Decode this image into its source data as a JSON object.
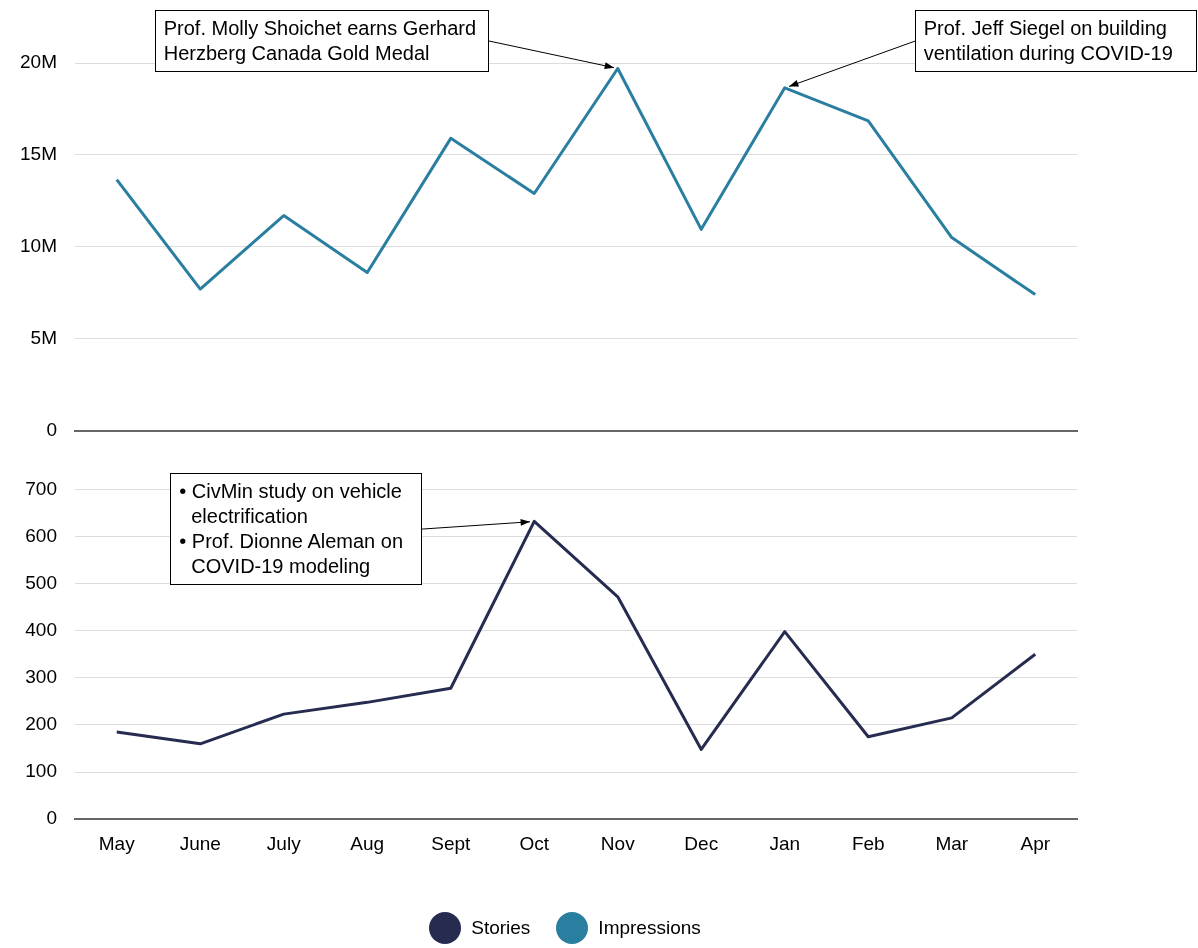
{
  "chart_data": [
    {
      "type": "line",
      "categories": [
        "May",
        "June",
        "July",
        "Aug",
        "Sept",
        "Oct",
        "Nov",
        "Dec",
        "Jan",
        "Feb",
        "Mar",
        "Apr"
      ],
      "series": [
        {
          "name": "Impressions",
          "color": "#2a7fa0",
          "values": [
            13650000,
            7700000,
            11700000,
            8600000,
            15900000,
            12900000,
            19700000,
            10950000,
            18650000,
            16850000,
            10500000,
            7400000
          ]
        }
      ],
      "ylim": [
        0,
        20000000
      ],
      "yticks": [
        0,
        {
          "value": 5000000,
          "label": "5M"
        },
        {
          "value": 10000000,
          "label": "10M"
        },
        {
          "value": 15000000,
          "label": "15M"
        },
        {
          "value": 20000000,
          "label": "20M"
        }
      ],
      "grid": "y",
      "tick_labels": "y",
      "legend": "bottom",
      "marker": "none",
      "annotations": [
        {
          "text": "Prof. Molly Shoichet earns Gerhard Herzberg Canada Gold Medal",
          "x": "Nov",
          "y": 19700000
        },
        {
          "text": "Prof. Jeff Siegel on building ventilation during COVID-19",
          "x": "Jan",
          "y": 18650000
        }
      ]
    },
    {
      "type": "line",
      "categories": [
        "May",
        "June",
        "July",
        "Aug",
        "Sept",
        "Oct",
        "Nov",
        "Dec",
        "Jan",
        "Feb",
        "Mar",
        "Apr"
      ],
      "series": [
        {
          "name": "Stories",
          "color": "#262b50",
          "values": [
            185,
            160,
            223,
            248,
            278,
            632,
            472,
            148,
            398,
            175,
            215,
            350
          ]
        }
      ],
      "ylim": [
        0,
        700
      ],
      "yticks": [
        0,
        100,
        200,
        300,
        400,
        500,
        600,
        700
      ],
      "grid": "y",
      "legend": "bottom",
      "marker": "none",
      "annotations": [
        {
          "text": "• CivMin study on vehicle electrification\n• Prof. Dionne Aleman on COVID-19 modeling",
          "x": "Oct",
          "y": 632
        }
      ]
    }
  ]
}
